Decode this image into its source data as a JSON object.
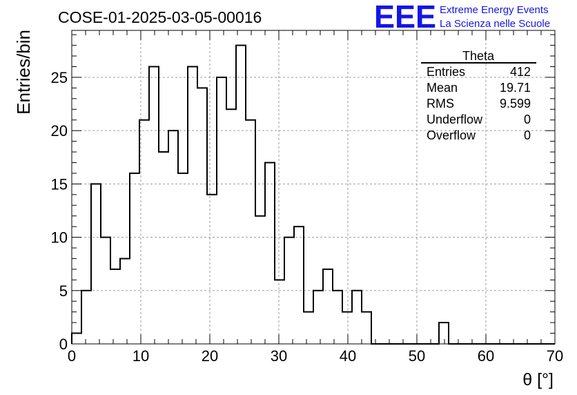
{
  "header": {
    "run_title": "COSE-01-2025-03-05-00016",
    "logo_text": "EEE",
    "logo_line1": "Extreme Energy Events",
    "logo_line2": "La Scienza nelle Scuole"
  },
  "stats_box": {
    "title": "Theta",
    "rows": [
      {
        "label": "Entries",
        "value": "412"
      },
      {
        "label": "Mean",
        "value": "19.71"
      },
      {
        "label": "RMS",
        "value": "9.599"
      },
      {
        "label": "Underflow",
        "value": "0"
      },
      {
        "label": "Overflow",
        "value": "0"
      }
    ]
  },
  "colors": {
    "accent": "#1515e6",
    "grid": "#9a9a9a",
    "line": "#000000"
  },
  "chart_data": {
    "type": "bar",
    "histogram": true,
    "title": "COSE-01-2025-03-05-00016",
    "xlabel": "θ [°]",
    "ylabel": "Entries/bin",
    "xlim": [
      0,
      70
    ],
    "ylim": [
      0,
      29.4
    ],
    "bin_width": 1.4,
    "grid": true,
    "legend": "top-right",
    "xticks": [
      0,
      10,
      20,
      30,
      40,
      50,
      60,
      70
    ],
    "yticks": [
      0,
      5,
      10,
      15,
      20,
      25
    ],
    "values": [
      1,
      5,
      15,
      10,
      7,
      8,
      16,
      21,
      26,
      18,
      20,
      16,
      26,
      24,
      14,
      25,
      22,
      28,
      21,
      12,
      17,
      6,
      10,
      11,
      3,
      5,
      7,
      5,
      3,
      5,
      3,
      0,
      0,
      0,
      0,
      0,
      0,
      0,
      2,
      0,
      0,
      0,
      0,
      0,
      0,
      0,
      0,
      0,
      0,
      0
    ]
  }
}
